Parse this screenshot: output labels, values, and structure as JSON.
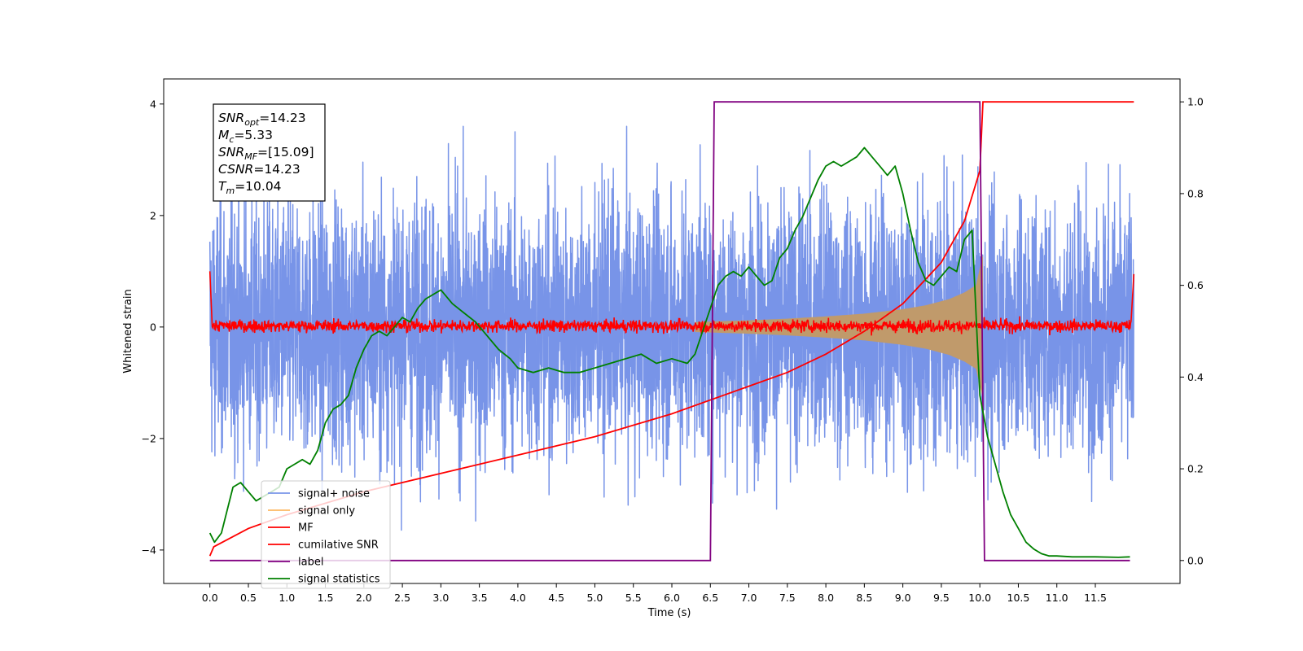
{
  "chart_data": {
    "type": "line",
    "xlabel": "Time (s)",
    "ylabel": "Whitened strain",
    "xlim": [
      -0.6,
      12.6
    ],
    "ylim_left": [
      -4.6,
      4.45
    ],
    "ylim_right": [
      -0.05,
      1.05
    ],
    "x_ticks": [
      0.0,
      0.5,
      1.0,
      1.5,
      2.0,
      2.5,
      3.0,
      3.5,
      4.0,
      4.5,
      5.0,
      5.5,
      6.0,
      6.5,
      7.0,
      7.5,
      8.0,
      8.5,
      9.0,
      9.5,
      10.0,
      10.5,
      11.0,
      11.5
    ],
    "x_tick_labels": [
      "0.0",
      "0.5",
      "1.0",
      "1.5",
      "2.0",
      "2.5",
      "3.0",
      "3.5",
      "4.0",
      "4.5",
      "5.0",
      "5.5",
      "6.0",
      "6.5",
      "7.0",
      "7.5",
      "8.0",
      "8.5",
      "9.0",
      "9.5",
      "10.0",
      "10.5",
      "11.0",
      "11.5"
    ],
    "y_left_ticks": [
      -4,
      -2,
      0,
      2,
      4
    ],
    "y_left_tick_labels": [
      "−4",
      "−2",
      "0",
      "2",
      "4"
    ],
    "y_right_ticks": [
      0.0,
      0.2,
      0.4,
      0.6,
      0.8,
      1.0
    ],
    "y_right_tick_labels": [
      "0.0",
      "0.2",
      "0.4",
      "0.6",
      "0.8",
      "1.0"
    ],
    "grid": false,
    "legend_position": "lower-left",
    "info_box": {
      "lines": [
        {
          "italic": "SNR",
          "sub": "opt",
          "rest": "=14.23"
        },
        {
          "italic": "M",
          "sub": "c",
          "rest": "=5.33"
        },
        {
          "italic": "SNR",
          "sub": "MF",
          "rest": "=[15.09]"
        },
        {
          "italic": "CSNR",
          "sub": "",
          "rest": "=14.23"
        },
        {
          "italic": "T",
          "sub": "m",
          "rest": "=10.04"
        }
      ]
    },
    "series": [
      {
        "name": "signal+ noise",
        "axis": "left",
        "color": "#7894e8",
        "description": "whitened noisy strain, band between about -3 and +3 with spikes to about ±4",
        "x_range": [
          0.0,
          12.0
        ],
        "envelope": [
          -2.6,
          2.7
        ]
      },
      {
        "name": "signal only",
        "axis": "left",
        "color": "#fdb863",
        "description": "chirp from about 6.5 s growing to amplitude about 1.3 at 10.04 s",
        "x": [
          6.3,
          7.0,
          7.5,
          8.0,
          8.5,
          9.0,
          9.3,
          9.6,
          9.8,
          9.95,
          10.04
        ],
        "amplitude": [
          0.09,
          0.12,
          0.15,
          0.19,
          0.24,
          0.32,
          0.39,
          0.5,
          0.62,
          0.75,
          1.3
        ]
      },
      {
        "name": "MF",
        "axis": "left",
        "color": "#ff0000",
        "description": "matched filter output, about 0 with small noise, 1.0 at 0 s and 0.95 at 12 s",
        "x_range": [
          0.0,
          12.0
        ],
        "level": 0.02
      },
      {
        "name": "cumilative SNR",
        "axis": "right",
        "color": "#ff0000",
        "x": [
          0.0,
          0.05,
          0.5,
          1.0,
          2.0,
          3.0,
          4.0,
          5.0,
          6.0,
          7.0,
          7.5,
          8.0,
          8.5,
          9.0,
          9.5,
          9.8,
          10.0,
          10.04,
          12.0
        ],
        "y": [
          0.01,
          0.03,
          0.07,
          0.1,
          0.15,
          0.19,
          0.23,
          0.27,
          0.32,
          0.38,
          0.41,
          0.45,
          0.5,
          0.56,
          0.65,
          0.74,
          0.85,
          1.0,
          1.0
        ]
      },
      {
        "name": "label",
        "axis": "right",
        "color": "#800080",
        "x": [
          0.0,
          6.5,
          6.55,
          10.0,
          10.06,
          11.95
        ],
        "y": [
          0.0,
          0.0,
          1.0,
          1.0,
          0.0,
          0.0
        ]
      },
      {
        "name": "signal statistics",
        "axis": "right",
        "color": "#008000",
        "x": [
          0.0,
          0.06,
          0.15,
          0.3,
          0.4,
          0.5,
          0.6,
          0.7,
          0.8,
          0.9,
          1.0,
          1.1,
          1.2,
          1.3,
          1.4,
          1.5,
          1.6,
          1.7,
          1.8,
          1.9,
          2.0,
          2.1,
          2.2,
          2.3,
          2.4,
          2.5,
          2.6,
          2.7,
          2.8,
          2.9,
          3.0,
          3.15,
          3.3,
          3.45,
          3.6,
          3.75,
          3.9,
          4.0,
          4.2,
          4.4,
          4.6,
          4.8,
          5.0,
          5.2,
          5.4,
          5.6,
          5.8,
          6.0,
          6.2,
          6.3,
          6.4,
          6.5,
          6.6,
          6.7,
          6.8,
          6.9,
          7.0,
          7.1,
          7.2,
          7.3,
          7.4,
          7.5,
          7.6,
          7.7,
          7.8,
          7.9,
          8.0,
          8.1,
          8.2,
          8.3,
          8.4,
          8.5,
          8.6,
          8.7,
          8.8,
          8.9,
          9.0,
          9.1,
          9.2,
          9.3,
          9.4,
          9.5,
          9.6,
          9.7,
          9.8,
          9.9,
          10.0,
          10.1,
          10.2,
          10.3,
          10.4,
          10.5,
          10.6,
          10.7,
          10.8,
          10.9,
          11.0,
          11.2,
          11.5,
          11.8,
          11.95
        ],
        "y": [
          0.06,
          0.04,
          0.06,
          0.16,
          0.17,
          0.15,
          0.13,
          0.14,
          0.15,
          0.16,
          0.2,
          0.21,
          0.22,
          0.21,
          0.24,
          0.3,
          0.33,
          0.34,
          0.36,
          0.42,
          0.46,
          0.49,
          0.5,
          0.49,
          0.51,
          0.53,
          0.52,
          0.55,
          0.57,
          0.58,
          0.59,
          0.56,
          0.54,
          0.52,
          0.49,
          0.46,
          0.44,
          0.42,
          0.41,
          0.42,
          0.41,
          0.41,
          0.42,
          0.43,
          0.44,
          0.45,
          0.43,
          0.44,
          0.43,
          0.45,
          0.5,
          0.55,
          0.6,
          0.62,
          0.63,
          0.62,
          0.64,
          0.62,
          0.6,
          0.61,
          0.66,
          0.68,
          0.72,
          0.75,
          0.79,
          0.83,
          0.86,
          0.87,
          0.86,
          0.87,
          0.88,
          0.9,
          0.88,
          0.86,
          0.84,
          0.86,
          0.8,
          0.72,
          0.65,
          0.61,
          0.6,
          0.62,
          0.64,
          0.63,
          0.7,
          0.72,
          0.36,
          0.27,
          0.21,
          0.15,
          0.1,
          0.07,
          0.04,
          0.025,
          0.015,
          0.01,
          0.01,
          0.008,
          0.008,
          0.007,
          0.008
        ]
      }
    ]
  }
}
